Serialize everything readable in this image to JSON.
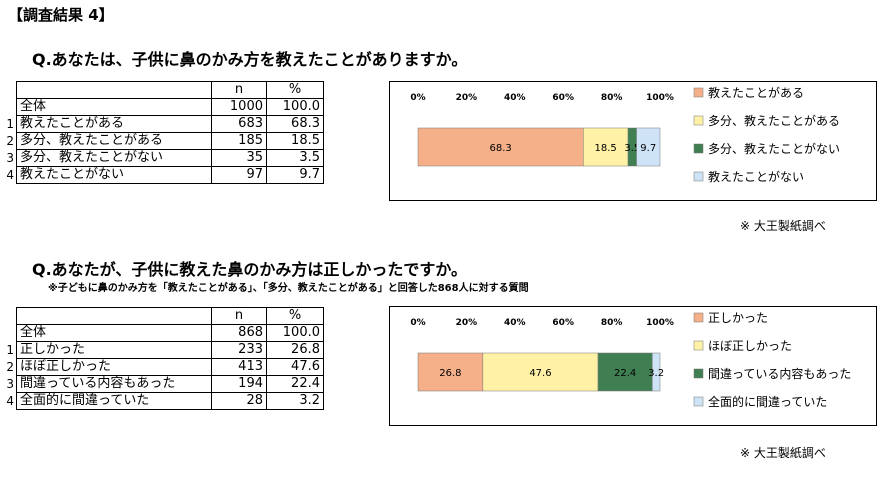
{
  "survey_title": "【調査結果 4】",
  "credit": "※ 大王製紙調べ",
  "colors": {
    "orange": "#f5b08a",
    "yellow": "#fff2a6",
    "green": "#3f7f52",
    "blue": "#cfe3f7"
  },
  "q1": {
    "title": "Q.あなたは、子供に鼻のかみ方を教えたことがありますか。",
    "table": {
      "header": [
        "",
        "n",
        "%"
      ],
      "total": {
        "label": "全体",
        "n": "1000",
        "pct": "100.0"
      },
      "rows": [
        {
          "idx": "1",
          "label": "教えたことがある",
          "n": "683",
          "pct": "68.3"
        },
        {
          "idx": "2",
          "label": "多分、教えたことがある",
          "n": "185",
          "pct": "18.5"
        },
        {
          "idx": "3",
          "label": "多分、教えたことがない",
          "n": "35",
          "pct": "3.5"
        },
        {
          "idx": "4",
          "label": "教えたことがない",
          "n": "97",
          "pct": "9.7"
        }
      ]
    }
  },
  "q2": {
    "title": "Q.あなたが、子供に教えた鼻のかみ方は正しかったですか。",
    "note": "※子どもに鼻のかみ方を「教えたことがある」、「多分、教えたことがある」と回答した868人に対する質問",
    "table": {
      "header": [
        "",
        "n",
        "%"
      ],
      "total": {
        "label": "全体",
        "n": "868",
        "pct": "100.0"
      },
      "rows": [
        {
          "idx": "1",
          "label": "正しかった",
          "n": "233",
          "pct": "26.8"
        },
        {
          "idx": "2",
          "label": "ほぼ正しかった",
          "n": "413",
          "pct": "47.6"
        },
        {
          "idx": "3",
          "label": "間違っている内容もあった",
          "n": "194",
          "pct": "22.4"
        },
        {
          "idx": "4",
          "label": "全面的に間違っていた",
          "n": "28",
          "pct": "3.2"
        }
      ]
    }
  },
  "chart_data": [
    {
      "type": "bar",
      "orientation": "horizontal-stacked-100",
      "xlim": [
        0,
        100
      ],
      "ticks": [
        "0%",
        "20%",
        "40%",
        "60%",
        "80%",
        "100%"
      ],
      "legend_position": "right",
      "series": [
        {
          "name": "教えたことがある",
          "value": 68.3,
          "color": "#f5b08a"
        },
        {
          "name": "多分、教えたことがある",
          "value": 18.5,
          "color": "#fff2a6"
        },
        {
          "name": "多分、教えたことがない",
          "value": 3.5,
          "color": "#3f7f52"
        },
        {
          "name": "教えたことがない",
          "value": 9.7,
          "color": "#cfe3f7"
        }
      ]
    },
    {
      "type": "bar",
      "orientation": "horizontal-stacked-100",
      "xlim": [
        0,
        100
      ],
      "ticks": [
        "0%",
        "20%",
        "40%",
        "60%",
        "80%",
        "100%"
      ],
      "legend_position": "right",
      "series": [
        {
          "name": "正しかった",
          "value": 26.8,
          "color": "#f5b08a"
        },
        {
          "name": "ほぼ正しかった",
          "value": 47.6,
          "color": "#fff2a6"
        },
        {
          "name": "間違っている内容もあった",
          "value": 22.4,
          "color": "#3f7f52"
        },
        {
          "name": "全面的に間違っていた",
          "value": 3.2,
          "color": "#cfe3f7"
        }
      ]
    }
  ]
}
